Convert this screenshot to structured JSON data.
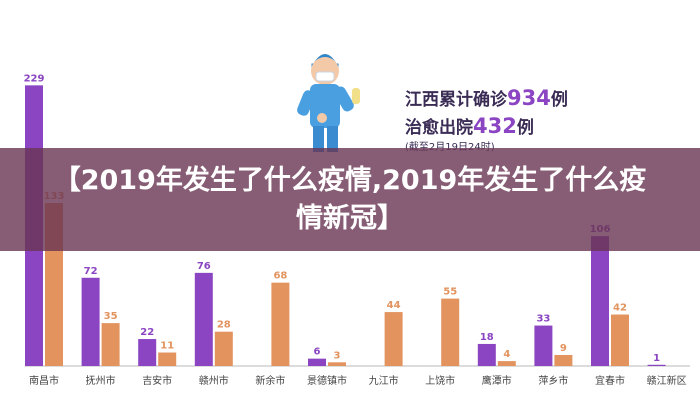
{
  "page_title": "【2019年发生了什么疫情,2019年发生了什么疫情新冠】",
  "info": {
    "line1_prefix": "江西累计确诊",
    "line1_value": "934",
    "line1_suffix": "例",
    "line2_prefix": "治愈出院",
    "line2_value": "432",
    "line2_suffix": "例",
    "note": "(截至2月19日24时)"
  },
  "colors": {
    "confirmed": "#8b45c2",
    "cured": "#e2935e",
    "accent_number": "#8b45c2",
    "info_text": "#3a2c55",
    "overlay": "#693452"
  },
  "chart_data": {
    "type": "bar",
    "categories": [
      "南昌市",
      "抚州市",
      "吉安市",
      "赣州市",
      "新余市",
      "景德镇市",
      "九江市",
      "上饶市",
      "鹰潭市",
      "萍乡市",
      "宜春市",
      "赣江新区"
    ],
    "series": [
      {
        "values": [
          229,
          72,
          22,
          76,
          null,
          6,
          null,
          null,
          18,
          33,
          106,
          1
        ],
        "color": "#8b45c2"
      },
      {
        "values": [
          133,
          35,
          11,
          28,
          68,
          3,
          44,
          55,
          4,
          9,
          42,
          null
        ],
        "color": "#e2935e"
      }
    ],
    "ylim": [
      0,
      235
    ],
    "grid": false
  }
}
